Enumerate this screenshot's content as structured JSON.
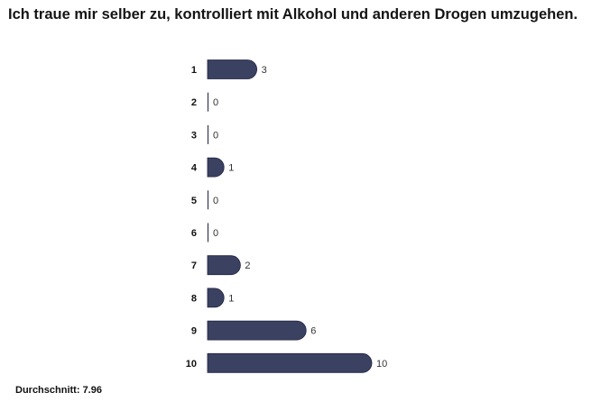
{
  "chart_data": {
    "type": "bar",
    "orientation": "horizontal",
    "title": "Ich traue mir selber zu, kontrolliert mit Alkohol und anderen Drogen umzugehen.",
    "categories": [
      "1",
      "2",
      "3",
      "4",
      "5",
      "6",
      "7",
      "8",
      "9",
      "10"
    ],
    "values": [
      3,
      0,
      0,
      1,
      0,
      0,
      2,
      1,
      6,
      10
    ],
    "xlim": [
      0,
      10
    ],
    "grid": false,
    "legend": "none",
    "bar_color": "#3b4161"
  },
  "footer": {
    "average_label": "Durchschnitt:",
    "average_value": "7.96"
  }
}
